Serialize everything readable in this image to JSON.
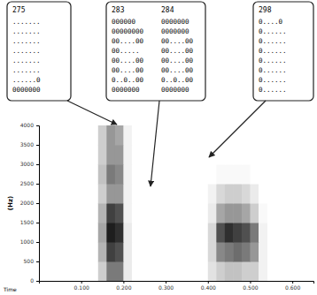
{
  "chart_data": {
    "type": "heatmap",
    "ylabel": "(Hz)",
    "xlabel": "Time",
    "xlim": [
      0,
      0.65
    ],
    "xticks": [
      {
        "value": 0.1,
        "label": "0.100"
      },
      {
        "value": 0.2,
        "label": "0.200"
      },
      {
        "value": 0.3,
        "label": "0.300"
      },
      {
        "value": 0.4,
        "label": "0.400"
      },
      {
        "value": 0.5,
        "label": "0.500"
      },
      {
        "value": 0.6,
        "label": "0.600"
      }
    ],
    "ylim": [
      0,
      4000
    ],
    "yticks": [
      0,
      500,
      1000,
      1500,
      2000,
      2500,
      3000,
      3500,
      4000
    ],
    "x_bins": [
      0.14,
      0.16,
      0.18,
      0.2,
      0.22,
      0.24,
      0.26,
      0.28,
      0.3,
      0.32,
      0.34,
      0.36,
      0.38,
      0.4,
      0.42,
      0.44,
      0.46,
      0.48,
      0.5,
      0.52,
      0.54
    ],
    "y_bins": [
      0,
      500,
      1000,
      1500,
      2000,
      2500,
      3000,
      3500,
      4000
    ],
    "cells": [
      [
        0.3,
        0.6,
        0.6,
        0.15,
        0,
        0,
        0,
        0,
        0,
        0,
        0,
        0,
        0,
        0.2,
        0.3,
        0.35,
        0.35,
        0.3,
        0.3,
        0.1
      ],
      [
        0.4,
        0.8,
        0.75,
        0.15,
        0,
        0,
        0,
        0,
        0,
        0,
        0,
        0,
        0,
        0.25,
        0.55,
        0.6,
        0.65,
        0.6,
        0.5,
        0.1
      ],
      [
        0.45,
        0.9,
        0.85,
        0.15,
        0,
        0,
        0,
        0,
        0,
        0,
        0,
        0,
        0,
        0.25,
        0.75,
        0.85,
        0.8,
        0.75,
        0.6,
        0.1
      ],
      [
        0.4,
        0.8,
        0.75,
        0.1,
        0,
        0,
        0,
        0,
        0,
        0,
        0,
        0,
        0,
        0.15,
        0.45,
        0.5,
        0.5,
        0.45,
        0.3,
        0.05
      ],
      [
        0.3,
        0.5,
        0.5,
        0.1,
        0,
        0,
        0,
        0,
        0,
        0,
        0,
        0,
        0,
        0.1,
        0.25,
        0.3,
        0.3,
        0.25,
        0.15,
        0
      ],
      [
        0.35,
        0.6,
        0.55,
        0.1,
        0,
        0,
        0,
        0,
        0,
        0,
        0,
        0,
        0,
        0,
        0.05,
        0.05,
        0.05,
        0.05,
        0,
        0
      ],
      [
        0.3,
        0.5,
        0.5,
        0.1,
        0,
        0,
        0,
        0,
        0,
        0,
        0,
        0,
        0,
        0,
        0,
        0,
        0,
        0,
        0,
        0
      ],
      [
        0.3,
        0.5,
        0.45,
        0.1,
        0,
        0,
        0,
        0,
        0,
        0,
        0,
        0,
        0,
        0,
        0,
        0,
        0,
        0,
        0,
        0
      ]
    ],
    "annotations": [
      {
        "frames": [
          {
            "label": "275",
            "rows": [
              ".......",
              ".......",
              ".......",
              ".......",
              ".......",
              ".......",
              "......0",
              "0000000"
            ]
          }
        ]
      },
      {
        "frames": [
          {
            "label": "283",
            "rows": [
              "000000",
              "00000000",
              "00....00",
              "00.....",
              "00....00",
              "00....00",
              "0..0..00",
              "0000000"
            ]
          },
          {
            "label": "284",
            "rows": [
              "0000000",
              "0000000",
              "00....00",
              "00....00",
              "00....00",
              "00....00",
              "0..0..00",
              "0000000"
            ]
          }
        ]
      },
      {
        "frames": [
          {
            "label": "298",
            "rows": [
              "0....0",
              "0......",
              "0......",
              "0......",
              "0......",
              "0......",
              "0......",
              "0......"
            ]
          }
        ]
      }
    ]
  }
}
